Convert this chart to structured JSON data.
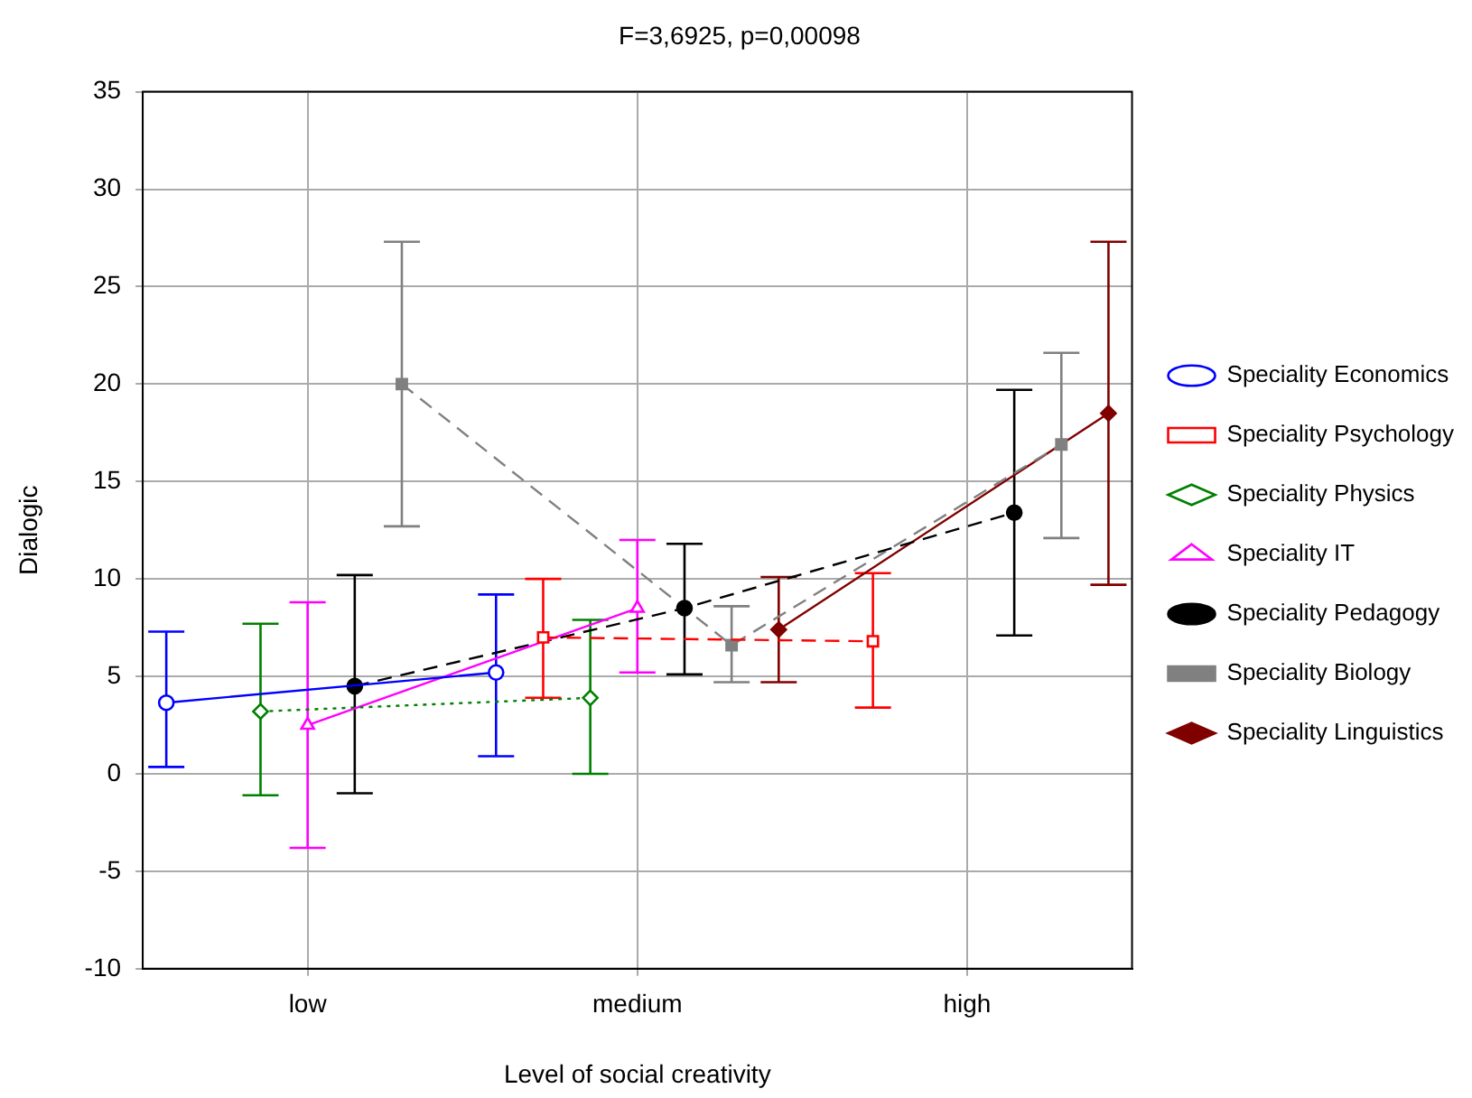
{
  "chart_data": {
    "type": "line",
    "title": "F=3,6925, p=0,00098",
    "xlabel": "Level of social creativity",
    "ylabel": "Dialogic",
    "categories": [
      null,
      null,
      null,
      "low",
      null,
      null,
      null,
      null,
      null,
      null,
      "medium",
      null,
      null,
      null,
      null,
      null,
      null,
      "high",
      null,
      null,
      null
    ],
    "ylim": [
      -10,
      35
    ],
    "yticks": [
      -10,
      -5,
      0,
      5,
      10,
      15,
      20,
      25,
      30,
      35
    ],
    "grid": true,
    "legend": "right",
    "series": [
      {
        "name": "Speciality Economics",
        "color": "#0000ff",
        "marker": "circle",
        "line_style": "solid",
        "values": [
          3.65,
          null,
          null,
          null,
          null,
          null,
          null,
          5.2,
          null,
          null,
          null,
          null,
          null,
          null,
          null,
          null,
          null,
          null,
          null,
          null,
          null
        ],
        "errors": [
          [
            0.35,
            7.3
          ],
          null,
          null,
          null,
          null,
          null,
          null,
          [
            0.9,
            9.2
          ],
          null,
          null,
          null,
          null,
          null,
          null,
          null,
          null,
          null,
          null,
          null,
          null,
          null
        ]
      },
      {
        "name": "Speciality Psychology",
        "color": "#ff0000",
        "marker": "square",
        "line_style": "dashed",
        "values": [
          null,
          null,
          null,
          null,
          null,
          null,
          null,
          null,
          7.0,
          null,
          null,
          null,
          null,
          null,
          null,
          6.8,
          null,
          null,
          null,
          null,
          null
        ],
        "errors": [
          null,
          null,
          null,
          null,
          null,
          null,
          null,
          null,
          [
            3.9,
            10.0
          ],
          null,
          null,
          null,
          null,
          null,
          null,
          [
            3.4,
            10.3
          ],
          null,
          null,
          null,
          null,
          null
        ]
      },
      {
        "name": "Speciality Physics",
        "color": "#008000",
        "marker": "diamond",
        "line_style": "dotted",
        "values": [
          null,
          null,
          3.2,
          null,
          null,
          null,
          null,
          null,
          null,
          3.9,
          null,
          null,
          null,
          null,
          null,
          null,
          null,
          null,
          null,
          null,
          null
        ],
        "errors": [
          null,
          null,
          [
            -1.1,
            7.7
          ],
          null,
          null,
          null,
          null,
          null,
          null,
          [
            0,
            7.9
          ],
          null,
          null,
          null,
          null,
          null,
          null,
          null,
          null,
          null,
          null,
          null
        ]
      },
      {
        "name": "Speciality IT",
        "color": "#ff00ff",
        "marker": "triangle",
        "line_style": "solid",
        "values": [
          null,
          null,
          null,
          2.5,
          null,
          null,
          null,
          null,
          null,
          null,
          8.5,
          null,
          null,
          null,
          null,
          null,
          null,
          null,
          null,
          null,
          null
        ],
        "errors": [
          null,
          null,
          null,
          [
            -3.8,
            8.8
          ],
          null,
          null,
          null,
          null,
          null,
          null,
          [
            5.2,
            12.0
          ],
          null,
          null,
          null,
          null,
          null,
          null,
          null,
          null,
          null,
          null
        ]
      },
      {
        "name": "Speciality Pedagogy",
        "color": "#000000",
        "marker": "circle",
        "line_style": "dashed",
        "values": [
          null,
          null,
          null,
          null,
          4.5,
          null,
          null,
          null,
          null,
          null,
          null,
          8.5,
          null,
          null,
          null,
          null,
          null,
          null,
          13.4,
          null,
          null
        ],
        "errors": [
          null,
          null,
          null,
          null,
          [
            -1.0,
            10.2
          ],
          null,
          null,
          null,
          null,
          null,
          null,
          [
            5.1,
            11.8
          ],
          null,
          null,
          null,
          null,
          null,
          null,
          [
            7.1,
            19.7
          ],
          null,
          null
        ]
      },
      {
        "name": "Speciality Biology",
        "color": "#808080",
        "marker": "square",
        "line_style": "dashed",
        "values": [
          null,
          null,
          null,
          null,
          null,
          20,
          null,
          null,
          null,
          null,
          null,
          null,
          6.6,
          null,
          null,
          null,
          null,
          null,
          null,
          16.9,
          null
        ],
        "errors": [
          null,
          null,
          null,
          null,
          null,
          [
            12.7,
            27.3
          ],
          null,
          null,
          null,
          null,
          null,
          null,
          [
            4.7,
            8.6
          ],
          null,
          null,
          null,
          null,
          null,
          null,
          [
            12.1,
            21.6
          ],
          null
        ]
      },
      {
        "name": "Speciality Linguistics",
        "color": "#800000",
        "marker": "diamond",
        "line_style": "solid",
        "values": [
          null,
          null,
          null,
          null,
          null,
          null,
          null,
          null,
          null,
          null,
          null,
          null,
          null,
          7.4,
          null,
          null,
          null,
          null,
          null,
          null,
          18.5
        ],
        "errors": [
          null,
          null,
          null,
          null,
          null,
          null,
          null,
          null,
          null,
          null,
          null,
          null,
          null,
          [
            4.7,
            10.1
          ],
          null,
          null,
          null,
          null,
          null,
          null,
          [
            9.7,
            27.3
          ]
        ]
      }
    ]
  }
}
